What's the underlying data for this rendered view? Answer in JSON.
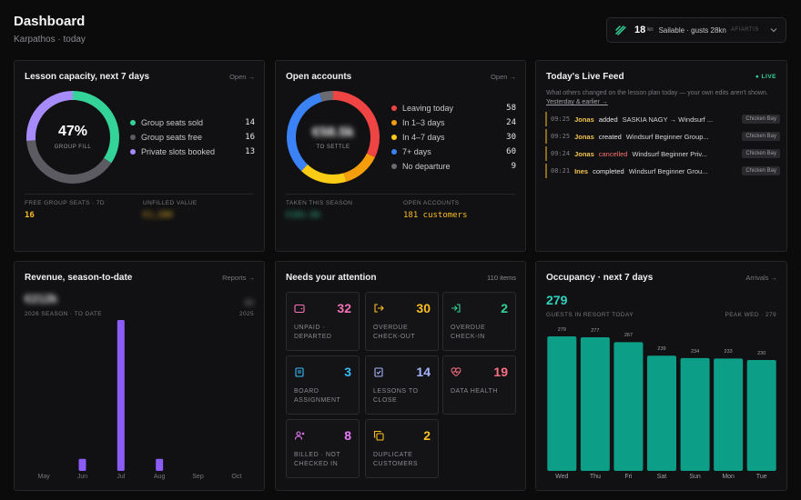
{
  "header": {
    "title": "Dashboard",
    "subtitle": "Karpathos · today"
  },
  "wind": {
    "speed": "18",
    "unit": "kn",
    "status": "Sailable · gusts 28kn",
    "station": "AFIARTIS",
    "icon": "wind-icon"
  },
  "lesson": {
    "title": "Lesson capacity, next 7 days",
    "link": "Open →",
    "donut_pct": "47%",
    "donut_label": "GROUP FILL",
    "legend": [
      {
        "label": "Group seats sold",
        "value": "14",
        "color": "#34d399"
      },
      {
        "label": "Group seats free",
        "value": "16",
        "color": "#5b5b61"
      },
      {
        "label": "Private slots booked",
        "value": "13",
        "color": "#a78bfa"
      }
    ],
    "stat1_label": "FREE GROUP SEATS · 7D",
    "stat1_value": "16",
    "stat2_label": "UNFILLED VALUE",
    "stat2_value": "€1,280"
  },
  "accounts": {
    "title": "Open accounts",
    "link": "Open →",
    "center_value": "€58.5k",
    "center_label": "TO SETTLE",
    "legend": [
      {
        "label": "Leaving today",
        "value": "58",
        "color": "#ef4444"
      },
      {
        "label": "In 1–3 days",
        "value": "24",
        "color": "#f59e0b"
      },
      {
        "label": "In 4–7 days",
        "value": "30",
        "color": "#facc15"
      },
      {
        "label": "7+ days",
        "value": "60",
        "color": "#3b82f6"
      },
      {
        "label": "No departure",
        "value": "9",
        "color": "#6b6b71"
      }
    ],
    "stat1_label": "TAKEN THIS SEASON",
    "stat1_value": "€101.6k",
    "stat2_label": "OPEN ACCOUNTS",
    "stat2_value": "181 customers"
  },
  "feed": {
    "title": "Today's Live Feed",
    "live": "LIVE",
    "desc": "What others changed on the lesson plan today — your own edits aren't shown.",
    "desc_link": "Yesterday & earlier →",
    "rows": [
      {
        "time": "09:25",
        "who": "Jonas",
        "action": "added",
        "text": "SASKIA NAGY → Windsurf ...",
        "tag": "Chicken Bay"
      },
      {
        "time": "09:25",
        "who": "Jonas",
        "action": "created",
        "text": "Windsurf Beginner Group...",
        "tag": "Chicken Bay"
      },
      {
        "time": "09:24",
        "who": "Jonas",
        "action": "cancelled",
        "text": "Windsurf Beginner Priv...",
        "tag": "Chicken Bay"
      },
      {
        "time": "08:21",
        "who": "Ines",
        "action": "completed",
        "text": "Windsurf Beginner Grou...",
        "tag": "Chicken Bay"
      }
    ]
  },
  "revenue": {
    "title": "Revenue, season-to-date",
    "link": "Reports →",
    "amount": "€212k",
    "season_label": "2026 SEASON · TO DATE",
    "compare_value": "€0",
    "compare_year": "2025",
    "accent": "#8b5cf6"
  },
  "attention": {
    "title": "Needs your attention",
    "count": "110 items",
    "tiles": [
      {
        "label": "UNPAID · DEPARTED",
        "value": "32",
        "color": "#f472b6",
        "icon": "wallet-icon"
      },
      {
        "label": "OVERDUE CHECK-OUT",
        "value": "30",
        "color": "#fbbf24",
        "icon": "logout-icon"
      },
      {
        "label": "OVERDUE CHECK-IN",
        "value": "2",
        "color": "#34d399",
        "icon": "login-icon"
      },
      {
        "label": "BOARD ASSIGNMENT",
        "value": "3",
        "color": "#38bdf8",
        "icon": "clipboard-icon"
      },
      {
        "label": "LESSONS TO CLOSE",
        "value": "14",
        "color": "#a5b4fc",
        "icon": "clipboard-check-icon"
      },
      {
        "label": "DATA HEALTH",
        "value": "19",
        "color": "#fb7185",
        "icon": "heart-pulse-icon"
      },
      {
        "label": "BILLED · NOT CHECKED IN",
        "value": "8",
        "color": "#e879f9",
        "icon": "user-x-icon"
      },
      {
        "label": "DUPLICATE CUSTOMERS",
        "value": "2",
        "color": "#fbbf24",
        "icon": "copy-icon"
      }
    ]
  },
  "occupancy": {
    "title": "Occupancy · next 7 days",
    "link": "Arrivals →",
    "value": "279",
    "label": "GUESTS IN RESORT TODAY",
    "peak": "PEAK WED · 279",
    "accent": "#0d9e88"
  },
  "chart_data": [
    {
      "type": "bar",
      "categories": [
        "May",
        "Jun",
        "Jul",
        "Aug",
        "Sep",
        "Oct"
      ],
      "values": [
        0,
        8,
        100,
        8,
        0,
        0
      ],
      "color": "#8b5cf6"
    },
    {
      "type": "bar",
      "categories": [
        "Wed",
        "Thu",
        "Fri",
        "Sat",
        "Sun",
        "Mon",
        "Tue"
      ],
      "values": [
        279,
        277,
        267,
        239,
        234,
        233,
        230
      ],
      "ylim": [
        0,
        279
      ],
      "color": "#0d9e88"
    }
  ]
}
